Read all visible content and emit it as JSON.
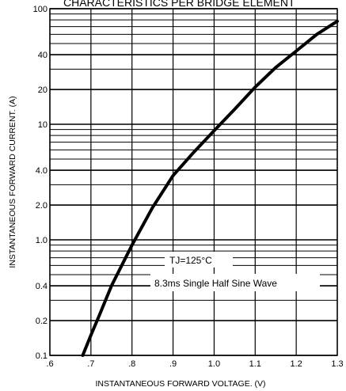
{
  "chart_data": {
    "type": "line",
    "title": "CHARACTERISTICS PER BRIDGE ELEMENT",
    "xlabel": "INSTANTANEOUS FORWARD VOLTAGE. (V)",
    "ylabel": "INSTANTANEOUS FORWARD CURRENT. (A)",
    "xlim": [
      0.6,
      1.3
    ],
    "ylim": [
      0.1,
      100
    ],
    "y_scale": "log",
    "grid": true,
    "x_ticks": [
      ".6",
      ".7",
      ".8",
      ".9",
      "1.0",
      "1.1",
      "1.2",
      "1.3"
    ],
    "y_ticks": [
      {
        "value": 0.1,
        "label": "0.1"
      },
      {
        "value": 0.2,
        "label": "0.2"
      },
      {
        "value": 0.4,
        "label": "0.4"
      },
      {
        "value": 1,
        "label": "1.0"
      },
      {
        "value": 2,
        "label": "2.0"
      },
      {
        "value": 4,
        "label": "4.0"
      },
      {
        "value": 10,
        "label": "10"
      },
      {
        "value": 20,
        "label": "20"
      },
      {
        "value": 40,
        "label": "40"
      },
      {
        "value": 100,
        "label": "100"
      }
    ],
    "series": [
      {
        "x": [
          0.68,
          0.7,
          0.72,
          0.75,
          0.78,
          0.8,
          0.85,
          0.9,
          0.95,
          1.0,
          1.05,
          1.1,
          1.15,
          1.2,
          1.25,
          1.3
        ],
        "y": [
          0.1,
          0.15,
          0.22,
          0.4,
          0.65,
          0.9,
          1.9,
          3.6,
          5.7,
          8.8,
          13.5,
          21,
          31,
          43,
          60,
          78
        ]
      }
    ],
    "annotations": [
      "TJ=125°C",
      "8.3ms Single Half Sine Wave"
    ]
  }
}
